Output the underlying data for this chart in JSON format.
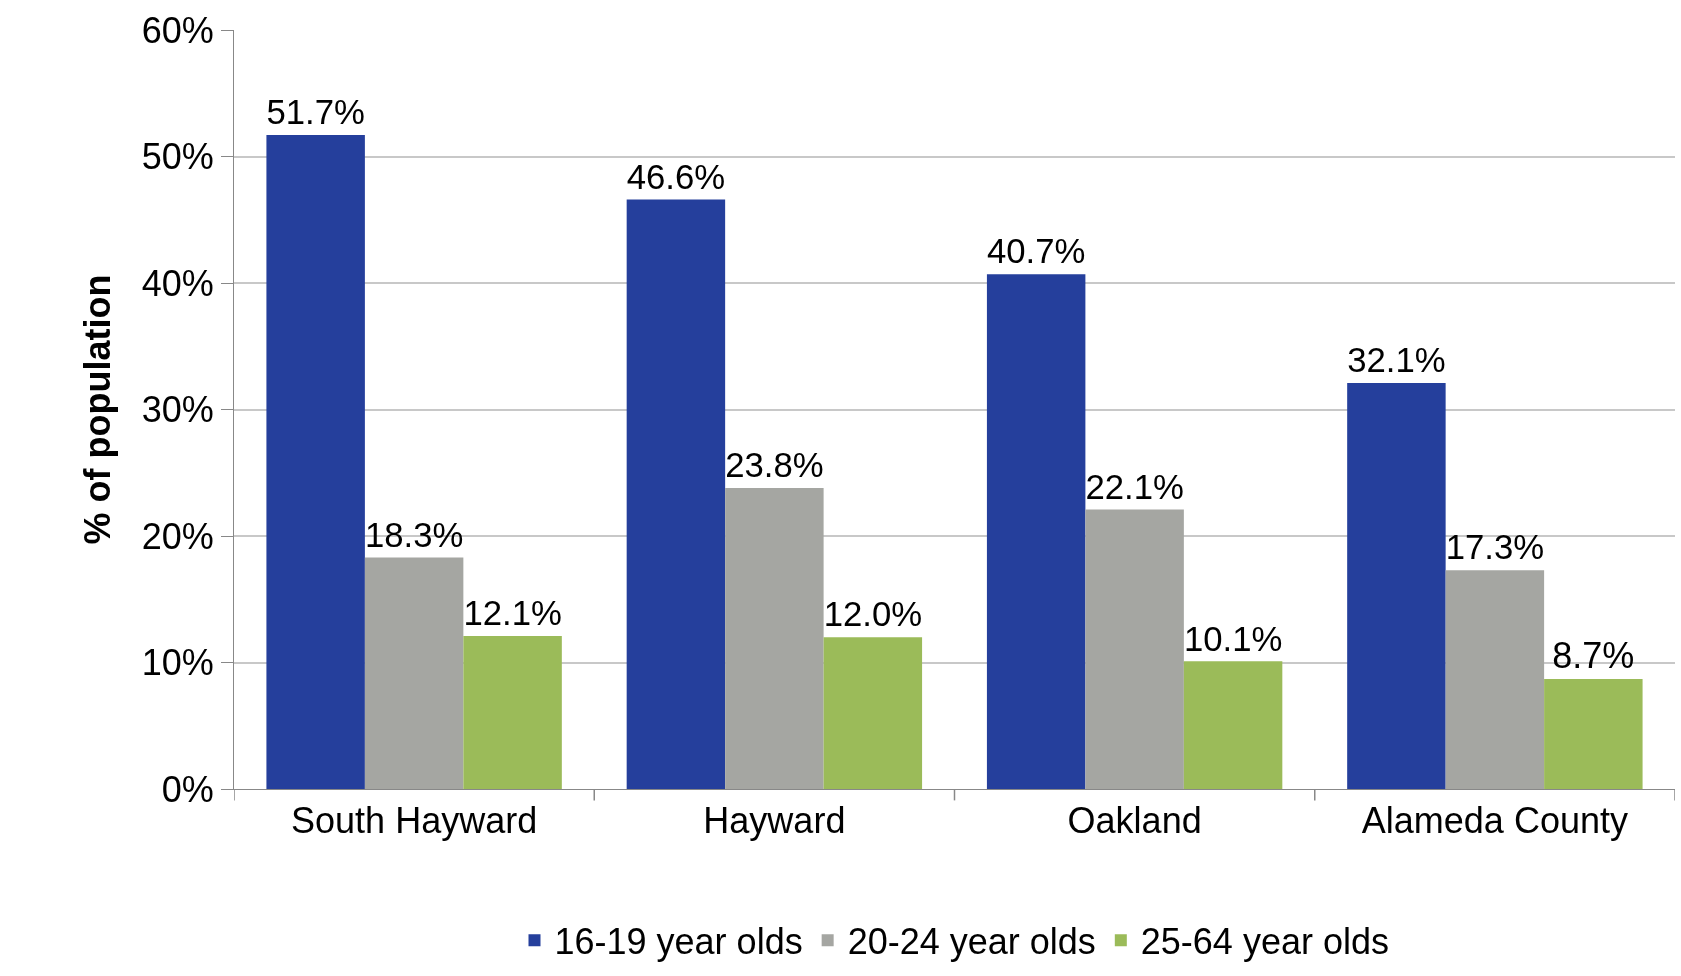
{
  "chart_data": {
    "type": "bar",
    "ylabel": "% of population",
    "categories": [
      "South Hayward",
      "Hayward",
      "Oakland",
      "Alameda County"
    ],
    "series": [
      {
        "name": "16-19 year olds",
        "color": "#253f9c",
        "values": [
          51.7,
          46.6,
          40.7,
          32.1
        ],
        "value_labels": [
          "51.7%",
          "46.6%",
          "40.7%",
          "32.1%"
        ]
      },
      {
        "name": "20-24 year olds",
        "color": "#a5a6a2",
        "values": [
          18.3,
          23.8,
          22.1,
          17.3
        ],
        "value_labels": [
          "18.3%",
          "23.8%",
          "22.1%",
          "17.3%"
        ]
      },
      {
        "name": "25-64 year olds",
        "color": "#9bbb59",
        "values": [
          12.1,
          12.0,
          10.1,
          8.7
        ],
        "value_labels": [
          "12.1%",
          "12.0%",
          "10.1%",
          "8.7%"
        ]
      }
    ],
    "ylim": [
      0,
      60
    ],
    "yticks": [
      {
        "value": 0,
        "label": "0%"
      },
      {
        "value": 10,
        "label": "10%"
      },
      {
        "value": 20,
        "label": "20%"
      },
      {
        "value": 30,
        "label": "30%"
      },
      {
        "value": 40,
        "label": "40%"
      },
      {
        "value": 50,
        "label": "50%"
      },
      {
        "value": 60,
        "label": "60%"
      }
    ],
    "grid": "y",
    "legend": "bottom"
  }
}
